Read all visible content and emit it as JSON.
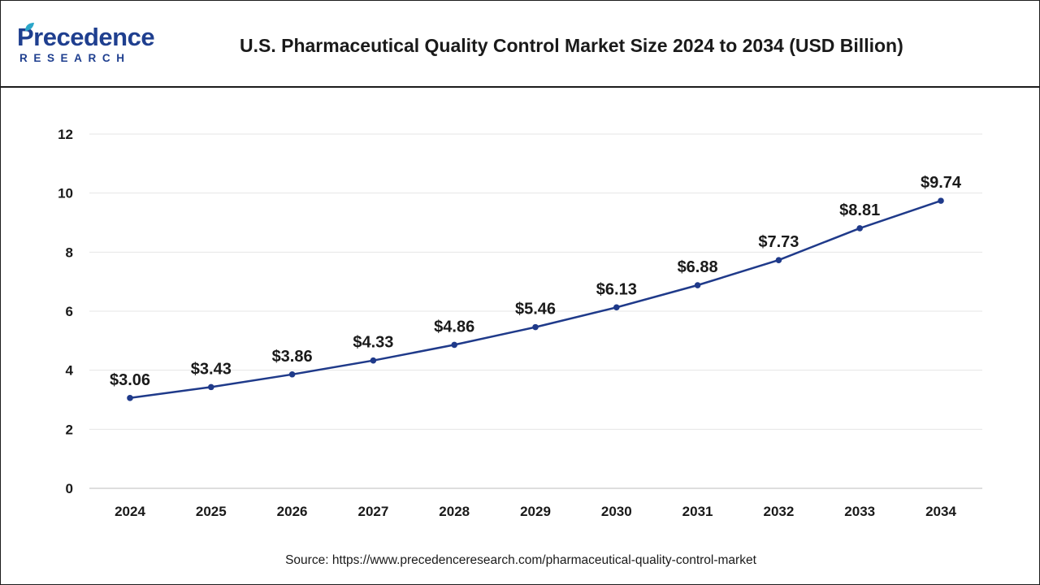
{
  "header": {
    "logo_word": "Precedence",
    "logo_sub": "RESEARCH",
    "title": "U.S. Pharmaceutical Quality Control Market Size 2024 to 2034 (USD Billion)"
  },
  "footer": {
    "source_label": "Source: ",
    "source_url": "https://www.precedenceresearch.com/pharmaceutical-quality-control-market"
  },
  "colors": {
    "line": "#1f3a8a",
    "grid": "#e6e6e6",
    "brand": "#1f3f8f"
  },
  "chart_data": {
    "type": "line",
    "title": "U.S. Pharmaceutical Quality Control Market Size 2024 to 2034 (USD Billion)",
    "xlabel": "",
    "ylabel": "",
    "categories": [
      "2024",
      "2025",
      "2026",
      "2027",
      "2028",
      "2029",
      "2030",
      "2031",
      "2032",
      "2033",
      "2034"
    ],
    "series": [
      {
        "name": "Market Size (USD Billion)",
        "values": [
          3.06,
          3.43,
          3.86,
          4.33,
          4.86,
          5.46,
          6.13,
          6.88,
          7.73,
          8.81,
          9.74
        ],
        "labels": [
          "$3.06",
          "$3.43",
          "$3.86",
          "$4.33",
          "$4.86",
          "$5.46",
          "$6.13",
          "$6.88",
          "$7.73",
          "$8.81",
          "$9.74"
        ]
      }
    ],
    "ylim": [
      0,
      12
    ],
    "yticks": [
      0,
      2,
      4,
      6,
      8,
      10,
      12
    ],
    "ytick_labels": [
      "0",
      "2",
      "4",
      "6",
      "8",
      "10",
      "12"
    ],
    "grid": true,
    "legend": "none"
  }
}
